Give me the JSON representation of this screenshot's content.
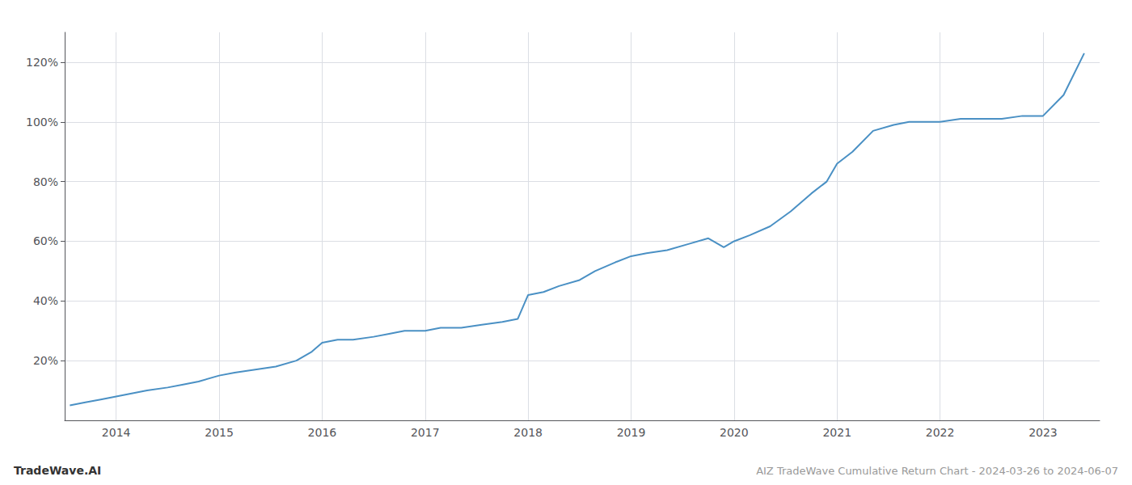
{
  "chart_data": {
    "type": "line",
    "title": "AIZ TradeWave Cumulative Return Chart - 2024-03-26 to 2024-06-07",
    "annotations": [
      "TradeWave.AI"
    ],
    "color": "#4a90c4",
    "x": [
      2013.55,
      2013.7,
      2013.85,
      2014.0,
      2014.15,
      2014.3,
      2014.5,
      2014.65,
      2014.8,
      2015.0,
      2015.15,
      2015.35,
      2015.55,
      2015.75,
      2015.9,
      2016.0,
      2016.15,
      2016.3,
      2016.5,
      2016.65,
      2016.8,
      2017.0,
      2017.15,
      2017.35,
      2017.55,
      2017.75,
      2017.9,
      2018.0,
      2018.15,
      2018.3,
      2018.5,
      2018.65,
      2018.85,
      2019.0,
      2019.15,
      2019.35,
      2019.55,
      2019.75,
      2019.9,
      2020.0,
      2020.15,
      2020.35,
      2020.55,
      2020.75,
      2020.9,
      2021.0,
      2021.15,
      2021.35,
      2021.55,
      2021.7,
      2021.85,
      2022.0,
      2022.2,
      2022.4,
      2022.6,
      2022.8,
      2023.0,
      2023.2,
      2023.4
    ],
    "values": [
      5,
      6,
      7,
      8,
      9,
      10,
      11,
      12,
      13,
      15,
      16,
      17,
      18,
      20,
      23,
      26,
      27,
      27,
      28,
      29,
      30,
      30,
      31,
      31,
      32,
      33,
      34,
      42,
      43,
      45,
      47,
      50,
      53,
      55,
      56,
      57,
      59,
      61,
      58,
      60,
      62,
      65,
      70,
      76,
      80,
      86,
      90,
      97,
      99,
      100,
      100,
      100,
      101,
      101,
      101,
      102,
      102,
      109,
      123
    ],
    "xlim": [
      2013.5,
      2023.55
    ],
    "xticks": [
      2014,
      2015,
      2016,
      2017,
      2018,
      2019,
      2020,
      2021,
      2022,
      2023
    ],
    "ylim": [
      0,
      130
    ],
    "yticks": [
      {
        "value": 20,
        "label": "20%"
      },
      {
        "value": 40,
        "label": "40%"
      },
      {
        "value": 60,
        "label": "60%"
      },
      {
        "value": 80,
        "label": "80%"
      },
      {
        "value": 100,
        "label": "100%"
      },
      {
        "value": 120,
        "label": "120%"
      }
    ],
    "grid": true
  }
}
